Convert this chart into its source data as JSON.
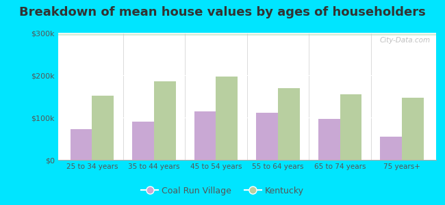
{
  "title": "Breakdown of mean house values by ages of householders",
  "categories": [
    "25 to 34 years",
    "35 to 44 years",
    "45 to 54 years",
    "55 to 64 years",
    "65 to 74 years",
    "75 years+"
  ],
  "coal_run_village": [
    72000,
    90000,
    115000,
    112000,
    97000,
    55000
  ],
  "kentucky": [
    152000,
    185000,
    196000,
    170000,
    155000,
    147000
  ],
  "coal_run_color": "#c9a8d4",
  "kentucky_color": "#b8cfa0",
  "bar_width": 0.35,
  "ylim": [
    0,
    300000
  ],
  "yticks": [
    0,
    100000,
    200000,
    300000
  ],
  "ytick_labels": [
    "$0",
    "$100k",
    "$200k",
    "$300k"
  ],
  "grad_top": "#e8f5e0",
  "grad_bottom": "#f8fff8",
  "outer_color": "#00e5ff",
  "legend_coal": "Coal Run Village",
  "legend_ky": "Kentucky",
  "title_fontsize": 13,
  "watermark": "City-Data.com"
}
